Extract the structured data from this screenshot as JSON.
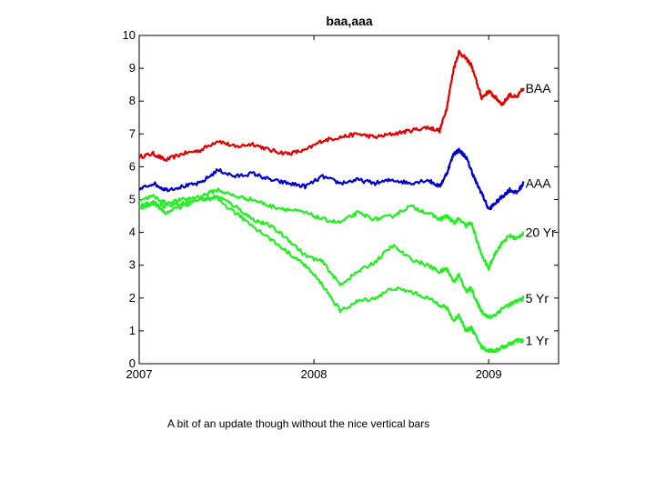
{
  "caption": "A bit of an update though without the nice vertical bars",
  "chart_data": {
    "type": "line",
    "title": "baa,aaa",
    "xlabel": "",
    "ylabel": "",
    "xlim": [
      2007.0,
      2009.4
    ],
    "ylim": [
      0,
      10
    ],
    "xticks": [
      2007,
      2008,
      2009
    ],
    "xtick_labels": [
      "2007",
      "2008",
      "2009"
    ],
    "yticks": [
      0,
      1,
      2,
      3,
      4,
      5,
      6,
      7,
      8,
      9,
      10
    ],
    "ytick_labels": [
      "0",
      "1",
      "2",
      "3",
      "4",
      "5",
      "6",
      "7",
      "8",
      "9",
      "10"
    ],
    "grid": false,
    "series": [
      {
        "name": "BAA",
        "label": "BAA",
        "color": "#e00000",
        "x": [
          2007.0,
          2007.08,
          2007.15,
          2007.25,
          2007.35,
          2007.45,
          2007.55,
          2007.65,
          2007.75,
          2007.85,
          2007.95,
          2008.05,
          2008.15,
          2008.25,
          2008.35,
          2008.45,
          2008.55,
          2008.65,
          2008.72,
          2008.76,
          2008.8,
          2008.83,
          2008.87,
          2008.9,
          2008.93,
          2008.96,
          2009.0,
          2009.04,
          2009.08,
          2009.12,
          2009.16,
          2009.2
        ],
        "values": [
          6.3,
          6.4,
          6.2,
          6.4,
          6.5,
          6.8,
          6.6,
          6.7,
          6.5,
          6.4,
          6.5,
          6.8,
          6.9,
          7.0,
          6.9,
          7.0,
          7.1,
          7.2,
          7.1,
          7.8,
          9.0,
          9.5,
          9.3,
          9.1,
          8.6,
          8.1,
          8.3,
          8.1,
          7.9,
          8.2,
          8.1,
          8.4
        ]
      },
      {
        "name": "AAA",
        "label": "AAA",
        "color": "#0000cc",
        "x": [
          2007.0,
          2007.08,
          2007.15,
          2007.25,
          2007.35,
          2007.45,
          2007.55,
          2007.65,
          2007.75,
          2007.85,
          2007.95,
          2008.05,
          2008.15,
          2008.25,
          2008.35,
          2008.45,
          2008.55,
          2008.65,
          2008.72,
          2008.76,
          2008.8,
          2008.83,
          2008.87,
          2008.9,
          2008.93,
          2008.96,
          2009.0,
          2009.04,
          2009.08,
          2009.12,
          2009.16,
          2009.2
        ],
        "values": [
          5.3,
          5.5,
          5.3,
          5.4,
          5.5,
          5.9,
          5.7,
          5.8,
          5.6,
          5.5,
          5.4,
          5.7,
          5.5,
          5.6,
          5.5,
          5.6,
          5.5,
          5.6,
          5.4,
          5.8,
          6.4,
          6.5,
          6.3,
          5.9,
          5.5,
          5.2,
          4.7,
          4.9,
          5.1,
          5.3,
          5.2,
          5.5
        ]
      },
      {
        "name": "20 Yr",
        "label": "20 Yr",
        "color": "#22ee22",
        "x": [
          2007.0,
          2007.08,
          2007.15,
          2007.25,
          2007.35,
          2007.45,
          2007.55,
          2007.65,
          2007.75,
          2007.85,
          2007.95,
          2008.05,
          2008.15,
          2008.25,
          2008.35,
          2008.45,
          2008.55,
          2008.65,
          2008.72,
          2008.76,
          2008.8,
          2008.83,
          2008.87,
          2008.9,
          2008.93,
          2008.96,
          2009.0,
          2009.04,
          2009.08,
          2009.12,
          2009.16,
          2009.2
        ],
        "values": [
          5.0,
          5.1,
          4.9,
          5.0,
          5.1,
          5.3,
          5.1,
          5.0,
          4.8,
          4.7,
          4.6,
          4.4,
          4.3,
          4.6,
          4.4,
          4.5,
          4.8,
          4.6,
          4.4,
          4.5,
          4.3,
          4.4,
          4.2,
          4.3,
          3.8,
          3.3,
          2.9,
          3.4,
          3.7,
          3.9,
          3.8,
          4.0
        ]
      },
      {
        "name": "5 Yr",
        "label": "5 Yr",
        "color": "#22ee22",
        "x": [
          2007.0,
          2007.08,
          2007.15,
          2007.25,
          2007.35,
          2007.45,
          2007.55,
          2007.65,
          2007.75,
          2007.85,
          2007.95,
          2008.05,
          2008.15,
          2008.25,
          2008.35,
          2008.45,
          2008.55,
          2008.65,
          2008.72,
          2008.76,
          2008.8,
          2008.83,
          2008.87,
          2008.9,
          2008.93,
          2008.96,
          2009.0,
          2009.04,
          2009.08,
          2009.12,
          2009.16,
          2009.2
        ],
        "values": [
          4.8,
          4.9,
          4.8,
          4.9,
          5.0,
          5.1,
          4.8,
          4.4,
          4.2,
          3.8,
          3.3,
          3.1,
          2.4,
          2.8,
          3.1,
          3.6,
          3.2,
          3.0,
          2.8,
          2.9,
          2.5,
          2.7,
          2.2,
          2.3,
          1.9,
          1.6,
          1.4,
          1.5,
          1.7,
          1.8,
          1.9,
          2.0
        ]
      },
      {
        "name": "1 Yr",
        "label": "1 Yr",
        "color": "#22ee22",
        "x": [
          2007.0,
          2007.08,
          2007.15,
          2007.25,
          2007.35,
          2007.45,
          2007.55,
          2007.65,
          2007.75,
          2007.85,
          2007.95,
          2008.05,
          2008.15,
          2008.25,
          2008.35,
          2008.45,
          2008.55,
          2008.65,
          2008.72,
          2008.76,
          2008.8,
          2008.83,
          2008.87,
          2008.9,
          2008.93,
          2008.96,
          2009.0,
          2009.04,
          2009.08,
          2009.12,
          2009.16,
          2009.2
        ],
        "values": [
          4.7,
          4.9,
          4.6,
          4.8,
          5.0,
          5.0,
          4.6,
          4.2,
          3.8,
          3.4,
          3.0,
          2.4,
          1.6,
          1.9,
          2.0,
          2.3,
          2.2,
          2.0,
          1.8,
          1.7,
          1.3,
          1.5,
          1.0,
          1.1,
          0.8,
          0.5,
          0.4,
          0.4,
          0.5,
          0.6,
          0.7,
          0.7
        ]
      }
    ]
  }
}
